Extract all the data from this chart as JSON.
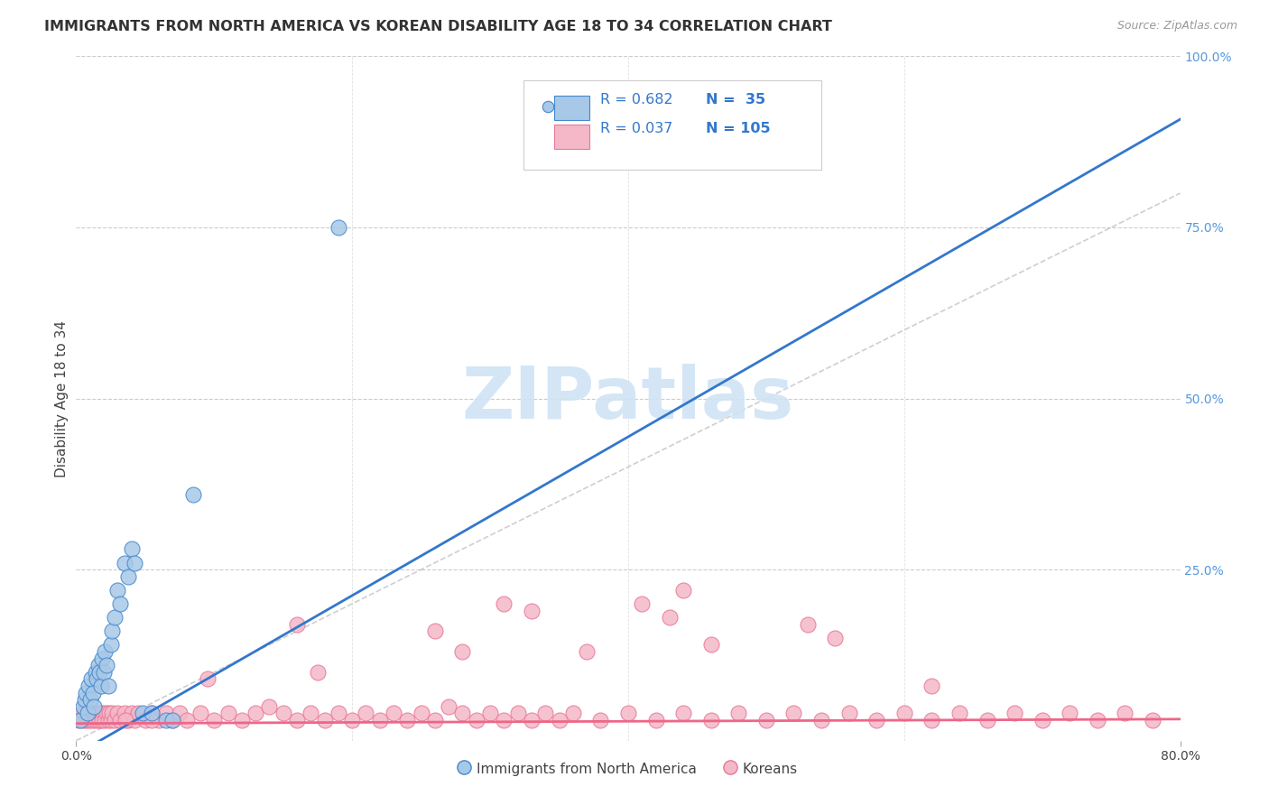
{
  "title": "IMMIGRANTS FROM NORTH AMERICA VS KOREAN DISABILITY AGE 18 TO 34 CORRELATION CHART",
  "source": "Source: ZipAtlas.com",
  "ylabel": "Disability Age 18 to 34",
  "xlim": [
    0.0,
    0.8
  ],
  "ylim": [
    0.0,
    1.0
  ],
  "blue_R": 0.682,
  "blue_N": 35,
  "pink_R": 0.037,
  "pink_N": 105,
  "blue_color": "#a8c8e8",
  "pink_color": "#f4b8c8",
  "blue_edge_color": "#4488cc",
  "pink_edge_color": "#e87898",
  "blue_line_color": "#3377cc",
  "pink_line_color": "#ee6688",
  "diagonal_color": "#bbbbbb",
  "watermark_color": "#d0e4f4",
  "blue_line_slope": 1.16,
  "blue_line_intercept": -0.02,
  "pink_line_slope": 0.008,
  "pink_line_intercept": 0.025,
  "blue_scatter_x": [
    0.003,
    0.005,
    0.006,
    0.007,
    0.008,
    0.009,
    0.01,
    0.011,
    0.012,
    0.013,
    0.014,
    0.015,
    0.016,
    0.017,
    0.018,
    0.019,
    0.02,
    0.021,
    0.022,
    0.023,
    0.025,
    0.026,
    0.028,
    0.03,
    0.032,
    0.035,
    0.038,
    0.04,
    0.042,
    0.048,
    0.055,
    0.065,
    0.07,
    0.085,
    0.19
  ],
  "blue_scatter_y": [
    0.03,
    0.05,
    0.06,
    0.07,
    0.04,
    0.08,
    0.06,
    0.09,
    0.07,
    0.05,
    0.1,
    0.09,
    0.11,
    0.1,
    0.08,
    0.12,
    0.1,
    0.13,
    0.11,
    0.08,
    0.14,
    0.16,
    0.18,
    0.22,
    0.2,
    0.26,
    0.24,
    0.28,
    0.26,
    0.04,
    0.04,
    0.03,
    0.03,
    0.36,
    0.75
  ],
  "pink_scatter_x": [
    0.002,
    0.004,
    0.005,
    0.006,
    0.007,
    0.008,
    0.009,
    0.01,
    0.011,
    0.012,
    0.013,
    0.014,
    0.015,
    0.016,
    0.017,
    0.018,
    0.019,
    0.02,
    0.021,
    0.022,
    0.023,
    0.024,
    0.025,
    0.026,
    0.028,
    0.03,
    0.032,
    0.035,
    0.038,
    0.04,
    0.042,
    0.045,
    0.05,
    0.055,
    0.06,
    0.065,
    0.07,
    0.075,
    0.08,
    0.09,
    0.1,
    0.11,
    0.12,
    0.13,
    0.14,
    0.15,
    0.16,
    0.17,
    0.18,
    0.19,
    0.2,
    0.21,
    0.22,
    0.23,
    0.24,
    0.25,
    0.26,
    0.27,
    0.28,
    0.29,
    0.3,
    0.31,
    0.32,
    0.33,
    0.34,
    0.35,
    0.36,
    0.38,
    0.4,
    0.42,
    0.44,
    0.46,
    0.48,
    0.5,
    0.52,
    0.54,
    0.56,
    0.58,
    0.6,
    0.62,
    0.64,
    0.66,
    0.68,
    0.7,
    0.72,
    0.74,
    0.76,
    0.78,
    0.33,
    0.43,
    0.53,
    0.41,
    0.31,
    0.16,
    0.26,
    0.55,
    0.62,
    0.44,
    0.175,
    0.095,
    0.055,
    0.036,
    0.28,
    0.37,
    0.46
  ],
  "pink_scatter_y": [
    0.03,
    0.04,
    0.03,
    0.04,
    0.03,
    0.04,
    0.03,
    0.04,
    0.03,
    0.04,
    0.03,
    0.04,
    0.03,
    0.04,
    0.03,
    0.04,
    0.03,
    0.04,
    0.03,
    0.04,
    0.03,
    0.04,
    0.03,
    0.04,
    0.03,
    0.04,
    0.03,
    0.04,
    0.03,
    0.04,
    0.03,
    0.04,
    0.03,
    0.04,
    0.03,
    0.04,
    0.03,
    0.04,
    0.03,
    0.04,
    0.03,
    0.04,
    0.03,
    0.04,
    0.05,
    0.04,
    0.03,
    0.04,
    0.03,
    0.04,
    0.03,
    0.04,
    0.03,
    0.04,
    0.03,
    0.04,
    0.03,
    0.05,
    0.04,
    0.03,
    0.04,
    0.03,
    0.04,
    0.03,
    0.04,
    0.03,
    0.04,
    0.03,
    0.04,
    0.03,
    0.04,
    0.03,
    0.04,
    0.03,
    0.04,
    0.03,
    0.04,
    0.03,
    0.04,
    0.03,
    0.04,
    0.03,
    0.04,
    0.03,
    0.04,
    0.03,
    0.04,
    0.03,
    0.19,
    0.18,
    0.17,
    0.2,
    0.2,
    0.17,
    0.16,
    0.15,
    0.08,
    0.22,
    0.1,
    0.09,
    0.03,
    0.03,
    0.13,
    0.13,
    0.14
  ]
}
